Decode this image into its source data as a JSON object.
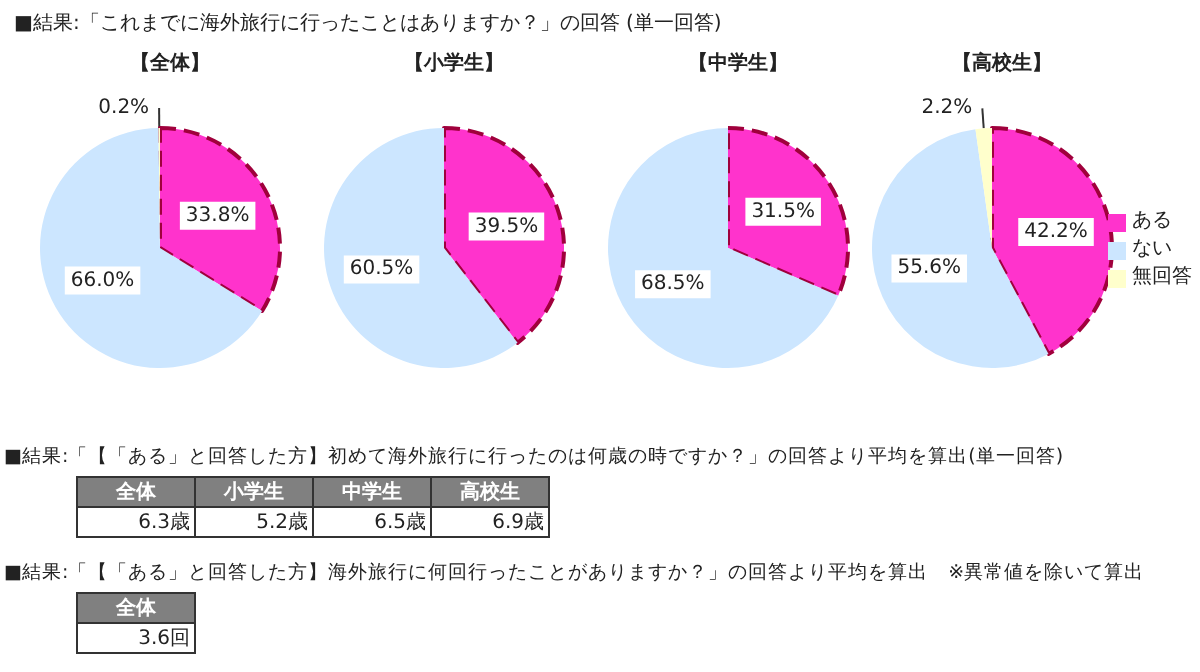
{
  "chart_data": [
    {
      "type": "pie",
      "title": "■結果:「これまでに海外旅行に行ったことはありますか？」の回答 (単一回答)",
      "categories": [
        "ある",
        "ない",
        "無回答"
      ],
      "colors": [
        "#ff33cc",
        "#cce6ff",
        "#ffffcc"
      ],
      "legend": "right",
      "series": [
        {
          "name": "【全体】",
          "values": [
            33.8,
            66.0,
            0.2
          ],
          "value_labels": [
            "33.8%",
            "66.0%",
            "0.2%"
          ]
        },
        {
          "name": "【小学生】",
          "values": [
            39.5,
            60.5,
            null
          ],
          "value_labels": [
            "39.5%",
            "60.5%",
            null
          ]
        },
        {
          "name": "【中学生】",
          "values": [
            31.5,
            68.5,
            null
          ],
          "value_labels": [
            "31.5%",
            "68.5%",
            null
          ]
        },
        {
          "name": "【高校生】",
          "values": [
            42.2,
            55.6,
            2.2
          ],
          "value_labels": [
            "42.2%",
            "55.6%",
            "2.2%"
          ]
        }
      ]
    },
    {
      "type": "other",
      "title": "■結果:「【「ある」と回答した方】初めて海外旅行に行ったのは何歳の時ですか？」の回答より平均を算出(単一回答)",
      "categories": [
        "全体",
        "小学生",
        "中学生",
        "高校生"
      ],
      "value_labels": [
        "6.3歳",
        "5.2歳",
        "6.5歳",
        "6.9歳"
      ]
    },
    {
      "type": "other",
      "title": "■結果:「【「ある」と回答した方】海外旅行に何回行ったことがありますか？」の回答より平均を算出　※異常値を除いて算出",
      "categories": [
        "全体"
      ],
      "value_labels": [
        "3.6回"
      ]
    }
  ]
}
